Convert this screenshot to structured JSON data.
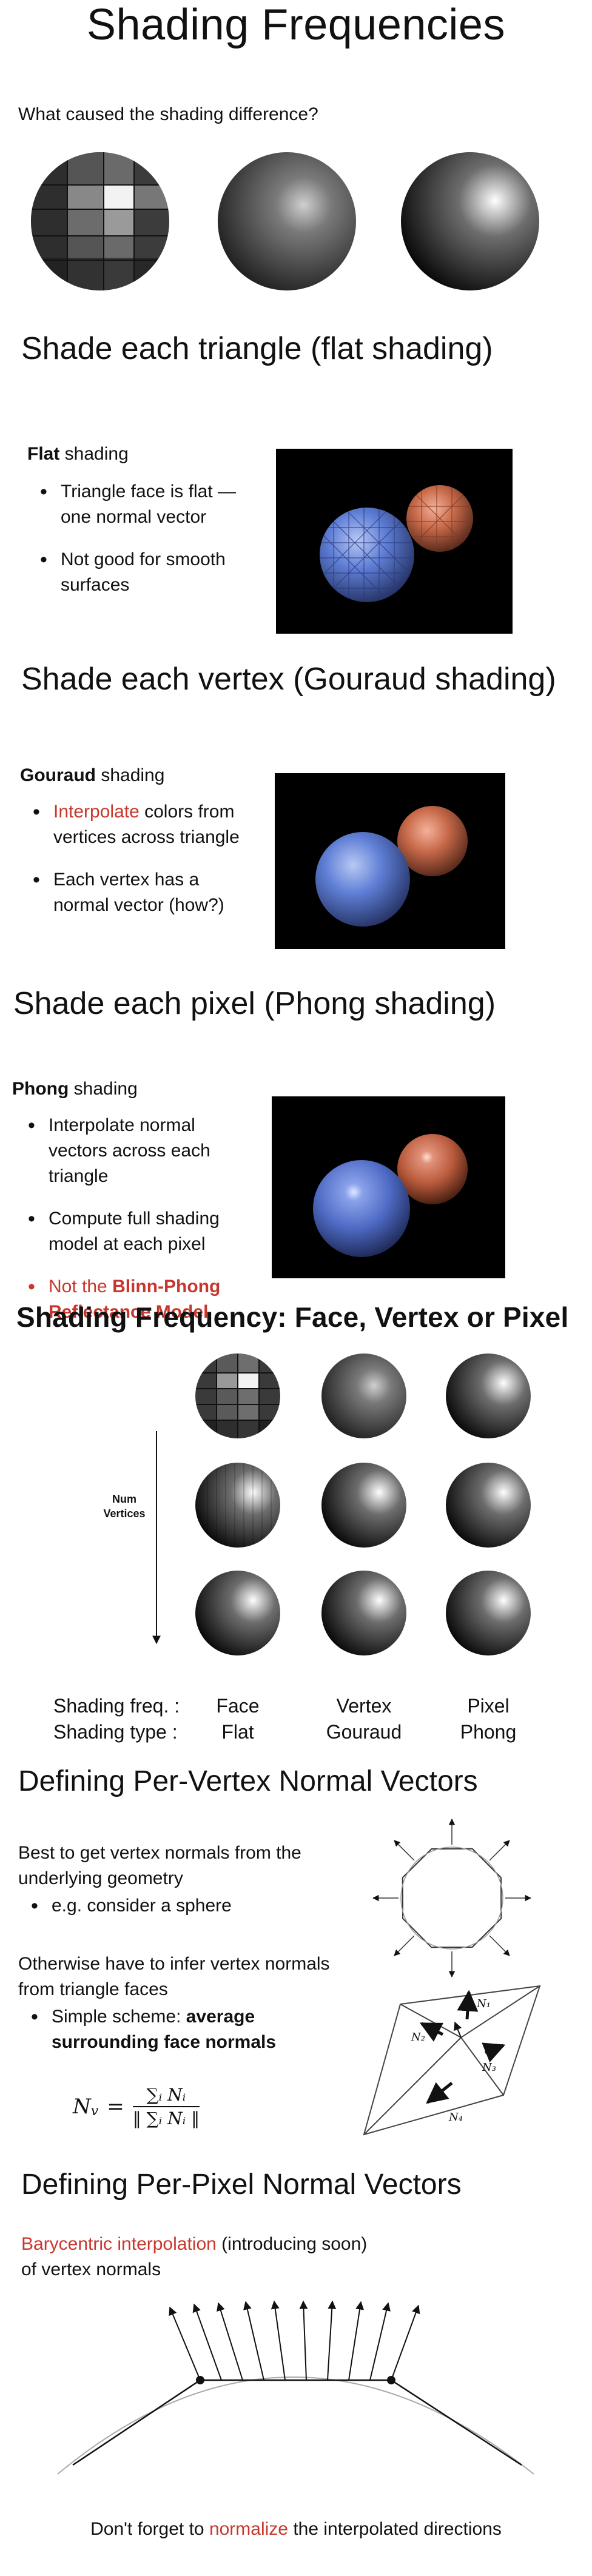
{
  "title": "Shading Frequencies",
  "question": "What caused the shading difference?",
  "flat": {
    "heading": "Shade each triangle (flat shading)",
    "label_bold": "Flat",
    "label_rest": " shading",
    "bullets": [
      "Triangle face is flat — one normal vector",
      "Not good for smooth surfaces"
    ]
  },
  "gouraud": {
    "heading": "Shade each vertex (Gouraud shading)",
    "label_bold": "Gouraud",
    "label_rest": " shading",
    "bullet1_red": "Interpolate",
    "bullet1_rest": " colors from vertices across triangle",
    "bullet2": "Each vertex has a normal vector (how?)"
  },
  "phong": {
    "heading": "Shade each pixel (Phong shading)",
    "label_bold": "Phong",
    "label_rest": " shading",
    "bullet1": "Interpolate normal vectors across each triangle",
    "bullet2": "Compute full shading model at each pixel",
    "bullet3_prefix": "Not the ",
    "bullet3_bold": "Blinn-Phong Reflectance Model"
  },
  "frequency": {
    "heading": "Shading Frequency: Face, Vertex or Pixel",
    "num_vertices_line1": "Num",
    "num_vertices_line2": "Vertices",
    "row1_label": "Shading freq. :",
    "row2_label": "Shading type :",
    "columns": [
      {
        "freq": "Face",
        "type": "Flat"
      },
      {
        "freq": "Vertex",
        "type": "Gouraud"
      },
      {
        "freq": "Pixel",
        "type": "Phong"
      }
    ]
  },
  "vertex_normals": {
    "heading": "Defining Per-Vertex Normal Vectors",
    "text1": "Best to get vertex normals from the underlying geometry",
    "bullet1": "e.g. consider a sphere",
    "text2": "Otherwise have to infer vertex normals from triangle faces",
    "bullet2_prefix": "Simple scheme: ",
    "bullet2_bold": "average surrounding face normals",
    "formula_lhs": "N",
    "formula_lhs_sub": "v",
    "formula_num": "∑ᵢ Nᵢ",
    "formula_den": "‖ ∑ᵢ Nᵢ ‖",
    "normal_labels": [
      "N₁",
      "N₂",
      "N₃",
      "N₄"
    ]
  },
  "pixel_normals": {
    "heading": "Defining Per-Pixel Normal Vectors",
    "line1_red": "Barycentric interpolation",
    "line1_rest": " (introducing soon)",
    "line2": "of vertex normals",
    "footer_prefix": "Don't forget to ",
    "footer_red": "normalize",
    "footer_suffix": " the interpolated directions"
  },
  "colors": {
    "accent_red": "#c8372d",
    "render_bg": "#000000",
    "blue_ball": "#4f6fc8",
    "copper_ball": "#c86a4a"
  }
}
